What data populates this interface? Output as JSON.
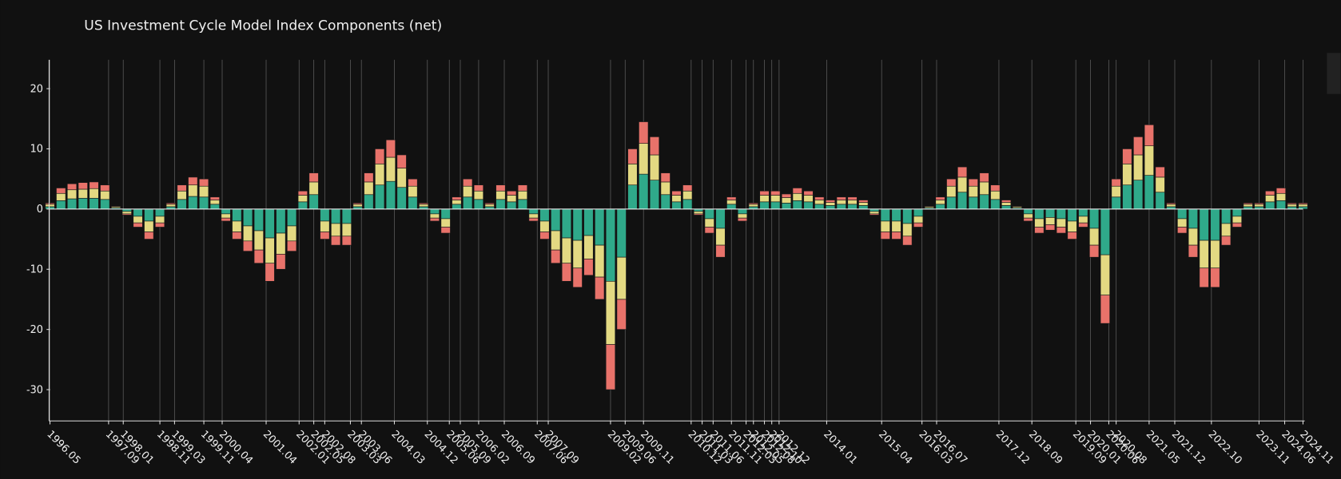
{
  "chart_data": {
    "type": "stacked-bar",
    "title": "US Investment Cycle Model Index Components (net)",
    "x": [
      "1996.05",
      "1996.08",
      "1996.11",
      "1997.02",
      "1997.05",
      "1997.08",
      "1997.11",
      "1998.02",
      "1998.05",
      "1998.08",
      "1998.11",
      "1999.02",
      "1999.05",
      "1999.08",
      "1999.11",
      "2000.02",
      "2000.05",
      "2000.08",
      "2000.11",
      "2001.02",
      "2001.05",
      "2001.08",
      "2001.11",
      "2002.02",
      "2002.05",
      "2002.08",
      "2002.11",
      "2003.02",
      "2003.05",
      "2003.08",
      "2003.11",
      "2004.02",
      "2004.05",
      "2004.08",
      "2004.11",
      "2005.02",
      "2005.05",
      "2005.08",
      "2005.11",
      "2006.02",
      "2006.05",
      "2006.08",
      "2006.11",
      "2007.02",
      "2007.05",
      "2007.08",
      "2007.11",
      "2008.02",
      "2008.05",
      "2008.08",
      "2008.11",
      "2009.02",
      "2009.05",
      "2009.08",
      "2009.11",
      "2010.02",
      "2010.05",
      "2010.08",
      "2010.11",
      "2011.02",
      "2011.05",
      "2011.08",
      "2011.11",
      "2012.02",
      "2012.05",
      "2012.08",
      "2012.11",
      "2013.02",
      "2013.05",
      "2013.08",
      "2013.11",
      "2014.02",
      "2014.05",
      "2014.08",
      "2014.11",
      "2015.02",
      "2015.05",
      "2015.08",
      "2015.11",
      "2016.02",
      "2016.05",
      "2016.08",
      "2016.11",
      "2017.02",
      "2017.05",
      "2017.08",
      "2017.11",
      "2018.02",
      "2018.05",
      "2018.08",
      "2018.11",
      "2019.02",
      "2019.05",
      "2019.08",
      "2019.11",
      "2020.02",
      "2020.05",
      "2020.08",
      "2020.11",
      "2021.02",
      "2021.05",
      "2021.08",
      "2021.11",
      "2022.02",
      "2022.05",
      "2022.08",
      "2022.11",
      "2023.02",
      "2023.05",
      "2023.08",
      "2023.11",
      "2024.02",
      "2024.05",
      "2024.08",
      "2024.11"
    ],
    "series": [
      {
        "color": "#2fa98a",
        "values": [
          0.4,
          1.4,
          1.7,
          1.8,
          1.8,
          1.6,
          0.2,
          -0.4,
          -1.2,
          -2,
          -1.2,
          0.4,
          1.6,
          2.1,
          2,
          0.8,
          -0.8,
          -2,
          -2.8,
          -3.6,
          -4.8,
          -4,
          -2.8,
          1.2,
          2.4,
          -2,
          -2.4,
          -2.4,
          0.4,
          2.4,
          4,
          4.6,
          3.6,
          2,
          0.4,
          -0.8,
          -1.6,
          0.8,
          2,
          1.6,
          0.4,
          1.6,
          1.2,
          1.6,
          -0.8,
          -2,
          -3.6,
          -4.8,
          -5.2,
          -4.4,
          -6,
          -12,
          -8,
          4,
          5.8,
          4.8,
          2.4,
          1.2,
          1.6,
          -0.4,
          -1.6,
          -3.2,
          0.8,
          -0.8,
          0.4,
          1.2,
          1.2,
          1,
          1.4,
          1.2,
          0.8,
          0.6,
          0.8,
          0.8,
          0.6,
          -0.4,
          -2,
          -2,
          -2.4,
          -1.2,
          0.2,
          0.8,
          2,
          2.8,
          2,
          2.4,
          1.6,
          0.6,
          0.2,
          -0.8,
          -1.6,
          -1.4,
          -1.6,
          -2,
          -1.2,
          -3.2,
          -7.6,
          2,
          4,
          4.8,
          5.6,
          2.8,
          0.4,
          -1.6,
          -3.2,
          -5.2,
          -5.2,
          -2.4,
          -1.2,
          0.4,
          0.4,
          1.2,
          1.4,
          0.4,
          0.4
        ]
      },
      {
        "color": "#e3d982",
        "values": [
          0.4,
          1.2,
          1.5,
          1.5,
          1.6,
          1.4,
          0.2,
          -0.4,
          -1.1,
          -1.8,
          -1.1,
          0.4,
          1.4,
          1.9,
          1.8,
          0.7,
          -0.7,
          -1.8,
          -2.5,
          -3.2,
          -4.2,
          -3.5,
          -2.5,
          1.1,
          2.1,
          -1.8,
          -2.1,
          -2.1,
          0.4,
          2.1,
          3.5,
          4,
          3.2,
          1.8,
          0.4,
          -0.7,
          -1.4,
          0.7,
          1.8,
          1.4,
          0.4,
          1.4,
          1.1,
          1.4,
          -0.7,
          -1.8,
          -3.2,
          -4.2,
          -4.6,
          -3.9,
          -5.3,
          -10.5,
          -7,
          3.5,
          5.1,
          4.2,
          2.1,
          1.1,
          1.4,
          -0.4,
          -1.4,
          -2.8,
          0.7,
          -0.7,
          0.4,
          1.1,
          1.1,
          0.9,
          1.2,
          1.1,
          0.7,
          0.5,
          0.7,
          0.7,
          0.5,
          -0.4,
          -1.8,
          -1.8,
          -2.1,
          -1.1,
          0.2,
          0.7,
          1.8,
          2.5,
          1.8,
          2.1,
          1.4,
          0.5,
          0.2,
          -0.7,
          -1.4,
          -1.2,
          -1.4,
          -1.8,
          -1.1,
          -2.8,
          -6.7,
          1.8,
          3.5,
          4.2,
          4.9,
          2.5,
          0.4,
          -1.4,
          -2.8,
          -4.6,
          -4.6,
          -2.1,
          -1.1,
          0.4,
          0.4,
          1.1,
          1.2,
          0.4,
          0.4
        ]
      },
      {
        "color": "#e8726a",
        "values": [
          0.2,
          0.9,
          1,
          1.1,
          1.1,
          1,
          0.1,
          -0.2,
          -0.7,
          -1.2,
          -0.7,
          0.2,
          1,
          1.3,
          1.2,
          0.5,
          -0.5,
          -1.2,
          -1.7,
          -2.2,
          -3,
          -2.5,
          -1.7,
          0.7,
          1.5,
          -1.2,
          -1.5,
          -1.5,
          0.2,
          1.5,
          2.5,
          2.9,
          2.2,
          1.2,
          0.2,
          -0.5,
          -1,
          0.5,
          1.2,
          1,
          0.2,
          1,
          0.7,
          1,
          -0.5,
          -1.2,
          -2.2,
          -3,
          -3.2,
          -2.7,
          -3.7,
          -7.5,
          -5,
          2.5,
          3.6,
          3,
          1.5,
          0.7,
          1,
          -0.2,
          -1,
          -2,
          0.5,
          -0.5,
          0.2,
          0.7,
          0.7,
          0.6,
          0.9,
          0.7,
          0.5,
          0.4,
          0.5,
          0.5,
          0.4,
          -0.2,
          -1.2,
          -1.2,
          -1.5,
          -0.7,
          0.1,
          0.5,
          1.2,
          1.7,
          1.2,
          1.5,
          1,
          0.4,
          0.1,
          -0.5,
          -1,
          -0.9,
          -1,
          -1.2,
          -0.7,
          -2,
          -4.7,
          1.2,
          2.5,
          3,
          3.5,
          1.7,
          0.2,
          -1,
          -2,
          -3.2,
          -3.2,
          -1.5,
          -0.7,
          0.2,
          0.2,
          0.7,
          0.9,
          0.2,
          0.2
        ]
      }
    ],
    "xlim": [
      "1996.05",
      "2024.11"
    ],
    "xticks": [
      "1996.05",
      "1997.09",
      "1998.01",
      "1998.11",
      "1999.03",
      "1999.11",
      "2000.04",
      "2001.04",
      "2002.01",
      "2002.05",
      "2002.08",
      "2003.03",
      "2003.06",
      "2004.03",
      "2004.12",
      "2005.06",
      "2005.09",
      "2006.02",
      "2006.09",
      "2007.06",
      "2007.09",
      "2009.02",
      "2009.06",
      "2009.11",
      "2010.12",
      "2011.03",
      "2011.06",
      "2011.11",
      "2012.03",
      "2012.05",
      "2012.08",
      "2012.10",
      "2012.12",
      "2014.01",
      "2015.04",
      "2016.03",
      "2016.07",
      "2017.12",
      "2018.09",
      "2019.09",
      "2020.01",
      "2020.06",
      "2020.08",
      "2021.05",
      "2021.12",
      "2022.10",
      "2023.11",
      "2024.06",
      "2024.11"
    ],
    "ylim": [
      -35.2,
      24.8
    ],
    "yticks": [
      -30,
      -20,
      -10,
      0,
      10,
      20
    ],
    "grid": true
  }
}
